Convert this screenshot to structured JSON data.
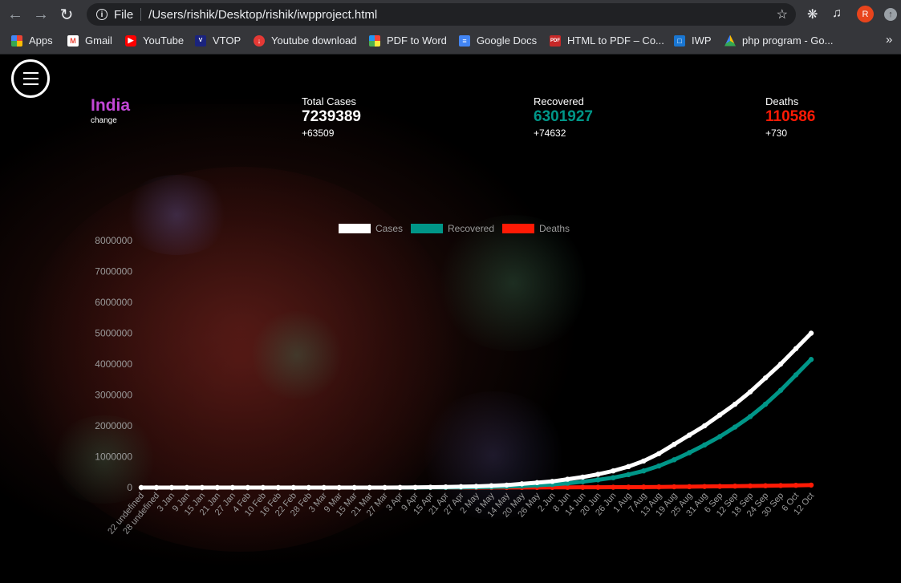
{
  "browser": {
    "scheme_label": "File",
    "url": "/Users/rishik/Desktop/rishik/iwpproject.html",
    "profile_initial": "R",
    "bookmarks": [
      {
        "label": "Apps",
        "icon": "apps-grid-icon"
      },
      {
        "label": "Gmail",
        "icon": "gmail-icon"
      },
      {
        "label": "YouTube",
        "icon": "youtube-icon"
      },
      {
        "label": "VTOP",
        "icon": "vtop-icon"
      },
      {
        "label": "Youtube download",
        "icon": "download-icon"
      },
      {
        "label": "PDF to Word",
        "icon": "pdf-to-word-icon"
      },
      {
        "label": "Google Docs",
        "icon": "google-docs-icon"
      },
      {
        "label": "HTML to PDF – Co...",
        "icon": "html-to-pdf-icon"
      },
      {
        "label": "IWP",
        "icon": "iwp-icon"
      },
      {
        "label": "php program - Go...",
        "icon": "google-drive-icon"
      }
    ]
  },
  "dashboard": {
    "country": "India",
    "change_link": "change",
    "stats": [
      {
        "label": "Total Cases",
        "value": "7239389",
        "delta": "+63509",
        "color": "#ffffff"
      },
      {
        "label": "Recovered",
        "value": "6301927",
        "delta": "+74632",
        "color": "#009688"
      },
      {
        "label": "Deaths",
        "value": "110586",
        "delta": "+730",
        "color": "#ff1a05"
      }
    ]
  },
  "chart_data": {
    "type": "line",
    "y_ticks": [
      "8000000",
      "7000000",
      "6000000",
      "5000000",
      "4000000",
      "3000000",
      "2000000",
      "1000000",
      "0"
    ],
    "ylim": [
      0,
      8000000
    ],
    "categories": [
      "22 undefined",
      "28 undefined",
      "3 Jan",
      "9 Jan",
      "15 Jan",
      "21 Jan",
      "27 Jan",
      "4 Feb",
      "10 Feb",
      "16 Feb",
      "22 Feb",
      "28 Feb",
      "3 Mar",
      "9 Mar",
      "15 Mar",
      "21 Mar",
      "27 Mar",
      "3 Apr",
      "9 Apr",
      "15 Apr",
      "21 Apr",
      "27 Apr",
      "2 May",
      "8 May",
      "14 May",
      "20 May",
      "26 May",
      "2 Jun",
      "8 Jun",
      "14 Jun",
      "20 Jun",
      "26 Jun",
      "1 Aug",
      "7 Aug",
      "13 Aug",
      "19 Aug",
      "25 Aug",
      "31 Aug",
      "6 Sep",
      "12 Sep",
      "18 Sep",
      "24 Sep",
      "30 Sep",
      "6 Oct",
      "12 Oct"
    ],
    "legend_position": "top",
    "series": [
      {
        "name": "Cases",
        "color": "#ffffff",
        "values": [
          0,
          0,
          0,
          0,
          0,
          0,
          0,
          0,
          0,
          0,
          0,
          0,
          0,
          0,
          0,
          200,
          800,
          3000,
          6000,
          12000,
          20000,
          30000,
          40000,
          60000,
          80000,
          120000,
          160000,
          200000,
          270000,
          340000,
          430000,
          540000,
          680000,
          860000,
          1100000,
          1400000,
          1700000,
          2000000,
          2350000,
          2700000,
          3100000,
          3550000,
          4000000,
          4500000,
          5000000
        ]
      },
      {
        "name": "Recovered",
        "color": "#009688",
        "values": [
          0,
          0,
          0,
          0,
          0,
          0,
          0,
          0,
          0,
          0,
          0,
          0,
          0,
          0,
          0,
          20,
          100,
          400,
          900,
          2000,
          4000,
          7000,
          12000,
          20000,
          32000,
          50000,
          75000,
          100000,
          140000,
          190000,
          250000,
          320000,
          420000,
          540000,
          700000,
          900000,
          1130000,
          1380000,
          1650000,
          1960000,
          2300000,
          2700000,
          3150000,
          3650000,
          4150000
        ]
      },
      {
        "name": "Deaths",
        "color": "#ff1a05",
        "values": [
          0,
          0,
          0,
          0,
          0,
          0,
          0,
          0,
          0,
          0,
          0,
          0,
          0,
          0,
          0,
          5,
          20,
          80,
          200,
          400,
          700,
          1000,
          1400,
          2000,
          2800,
          3700,
          4700,
          5800,
          7000,
          8500,
          10000,
          12000,
          14500,
          17500,
          21000,
          25000,
          29500,
          34500,
          40000,
          46000,
          52500,
          59000,
          66000,
          73000,
          80000
        ]
      }
    ]
  }
}
